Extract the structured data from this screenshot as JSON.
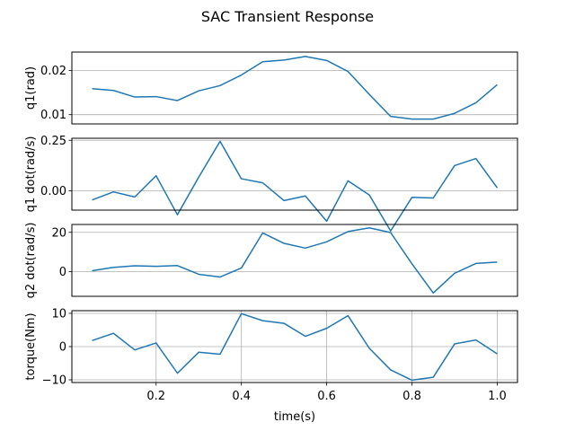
{
  "chart_data": {
    "type": "line",
    "title": "SAC Transient Response",
    "line_color": "#1f77b4",
    "grid_color": "#b0b0b0",
    "xlim": [
      0.0025,
      1.0475
    ],
    "x": [
      0.05,
      0.1,
      0.15,
      0.2,
      0.25,
      0.3,
      0.35,
      0.4,
      0.45,
      0.5,
      0.55,
      0.6,
      0.65,
      0.7,
      0.75,
      0.8,
      0.85,
      0.9,
      0.95,
      1.0
    ],
    "x_ticks": [
      0.2,
      0.4,
      0.6,
      0.8,
      1.0
    ],
    "x_tick_labels": [
      "0.2",
      "0.4",
      "0.6",
      "0.8",
      "1.0"
    ],
    "xlabel": "time(s)",
    "panels": [
      {
        "name": "q1",
        "ylabel": "q1(rad)",
        "ylim": [
          0.0079,
          0.0242
        ],
        "yticks": [
          0.01,
          0.02
        ],
        "ytick_labels": [
          "0.01",
          "0.02"
        ],
        "grid": "y",
        "values": [
          0.0159,
          0.0155,
          0.014,
          0.0141,
          0.0132,
          0.0154,
          0.0166,
          0.019,
          0.022,
          0.0224,
          0.0232,
          0.0223,
          0.0198,
          0.0146,
          0.0096,
          0.009,
          0.009,
          0.0103,
          0.0127,
          0.0168
        ]
      },
      {
        "name": "q1dot",
        "ylabel": "q1 dot(rad/s)",
        "ylim": [
          -0.095,
          0.26
        ],
        "yticks": [
          0.0,
          0.25
        ],
        "ytick_labels": [
          "0.00",
          "0.25"
        ],
        "grid": "y",
        "values": [
          -0.045,
          -0.005,
          -0.03,
          0.075,
          -0.118,
          0.068,
          0.245,
          0.06,
          0.04,
          -0.048,
          -0.025,
          -0.15,
          0.05,
          -0.02,
          -0.198,
          -0.032,
          -0.035,
          0.125,
          0.16,
          0.015
        ]
      },
      {
        "name": "q2dot",
        "ylabel": "q2 dot(rad/s)",
        "ylim": [
          -12.5,
          24.0
        ],
        "yticks": [
          0,
          20
        ],
        "ytick_labels": [
          "0",
          "20"
        ],
        "grid": "y",
        "values": [
          0.5,
          2.2,
          3.0,
          2.7,
          3.1,
          -1.3,
          -2.7,
          1.9,
          19.7,
          14.4,
          12.0,
          15.2,
          20.4,
          22.3,
          19.9,
          4.0,
          -10.8,
          -0.8,
          4.2,
          4.9
        ]
      },
      {
        "name": "torque",
        "ylabel": "torque(Nm)",
        "ylim": [
          -10.8,
          10.8
        ],
        "yticks": [
          -10,
          0,
          10
        ],
        "ytick_labels": [
          "−10",
          "0",
          "10"
        ],
        "grid": "both",
        "values": [
          1.8,
          4.0,
          -1.0,
          1.1,
          -8.0,
          -1.7,
          -2.3,
          9.9,
          7.8,
          7.0,
          3.1,
          5.5,
          9.3,
          -0.5,
          -7.0,
          -10.1,
          -9.2,
          0.8,
          2.0,
          -2.2
        ]
      }
    ]
  }
}
